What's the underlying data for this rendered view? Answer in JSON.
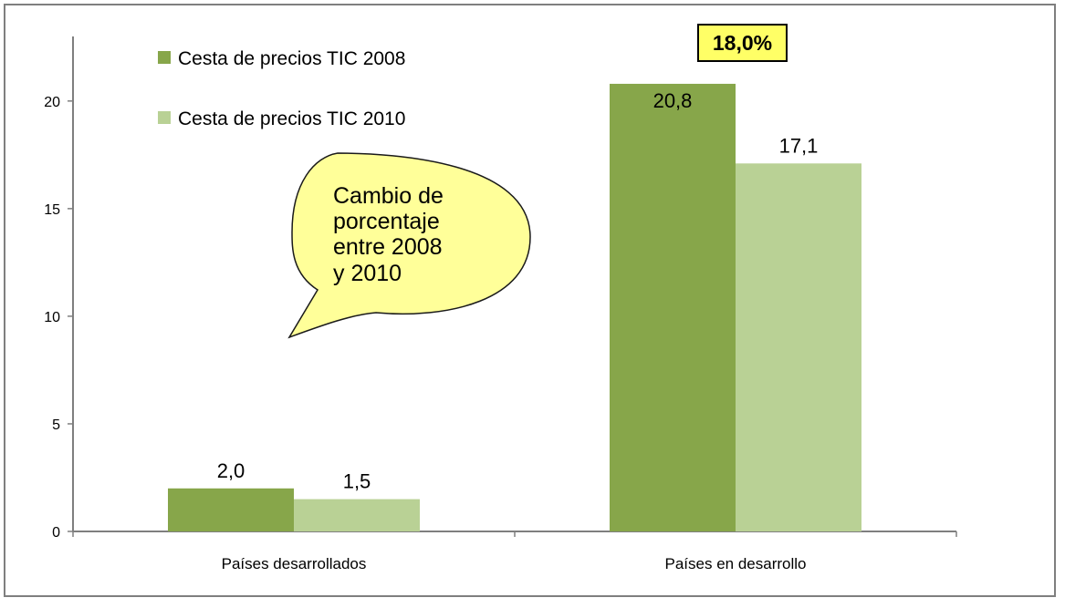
{
  "chart_data": {
    "type": "bar",
    "categories": [
      "Países desarrollados",
      "Países en desarrollo"
    ],
    "series": [
      {
        "name": "Cesta de precios TIC 2008",
        "values": [
          2.0,
          20.8
        ],
        "labels": [
          "2,0",
          "20,8"
        ],
        "color": "#87a64a"
      },
      {
        "name": "Cesta de precios TIC 2010",
        "values": [
          1.5,
          17.1
        ],
        "labels": [
          "1,5",
          "17,1"
        ],
        "color": "#b9d195"
      }
    ],
    "ylim": [
      0,
      23
    ],
    "yticks": [
      0,
      5,
      10,
      15,
      20
    ],
    "ytick_labels": [
      "0",
      "5",
      "10",
      "15",
      "20"
    ],
    "legend_position": "top-left",
    "grid": false,
    "annotations": {
      "bubble_lines": [
        "Cambio de",
        "porcentaje",
        "entre 2008",
        "y 2010"
      ],
      "bubble_color": "#ffff99",
      "callout": "18,0%",
      "callout_color": "#ffff66"
    }
  }
}
